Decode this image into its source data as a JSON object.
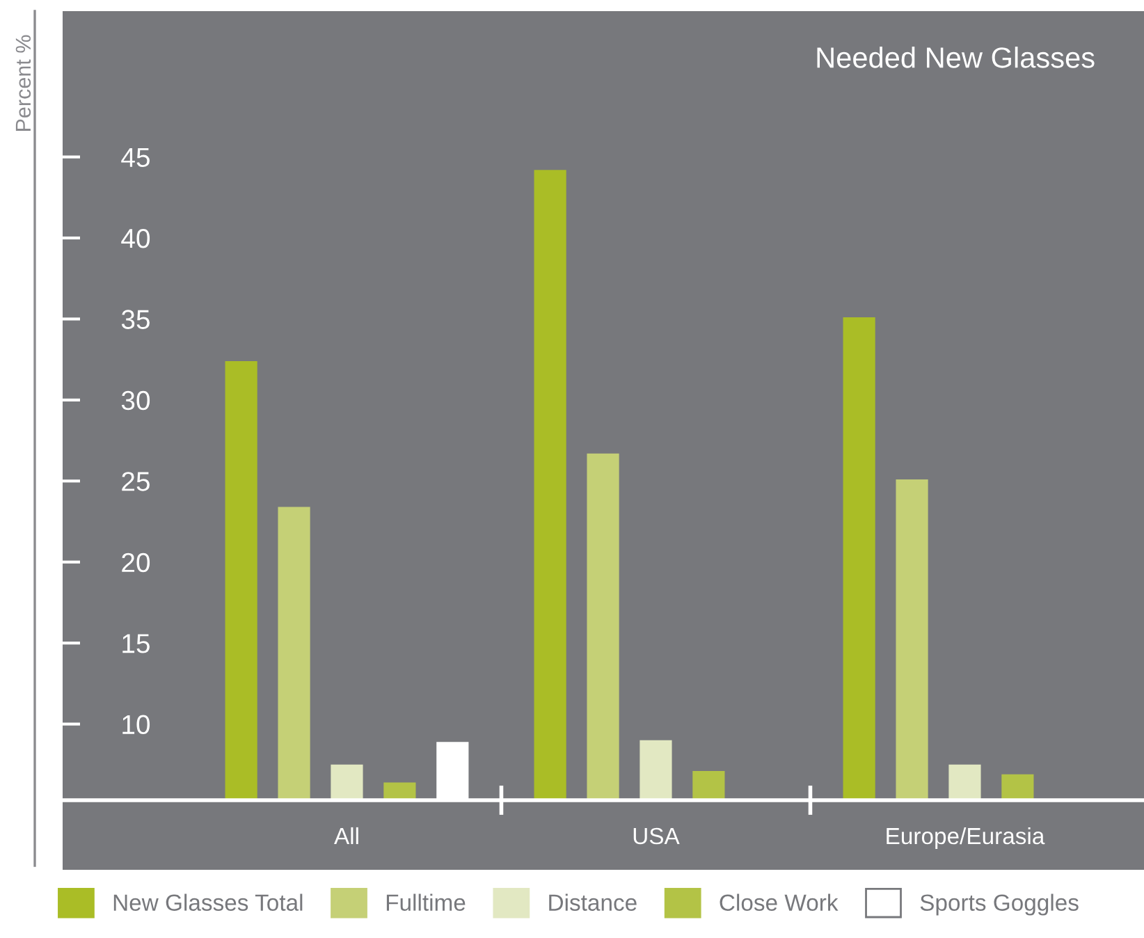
{
  "chart_data": {
    "type": "bar",
    "title": "Needed New Glasses",
    "ylabel": "Percent %",
    "categories": [
      "All",
      "USA",
      "Europe/Eurasia"
    ],
    "series": [
      {
        "name": "New Glasses Total",
        "color": "#aabd26",
        "values": [
          32.4,
          44.2,
          35.1
        ]
      },
      {
        "name": "Fulltime",
        "color": "#c5d076",
        "values": [
          23.4,
          26.7,
          25.1
        ]
      },
      {
        "name": "Distance",
        "color": "#e2e8c2",
        "values": [
          7.5,
          9.0,
          7.5
        ]
      },
      {
        "name": "Close Work",
        "color": "#b3c346",
        "values": [
          6.4,
          7.1,
          6.9
        ]
      },
      {
        "name": "Sports Goggles",
        "color": "#ffffff",
        "values": [
          8.9,
          null,
          null
        ]
      }
    ],
    "ylim": [
      5.3,
      54
    ],
    "yticks": [
      10,
      15,
      20,
      25,
      30,
      35,
      40,
      45
    ],
    "grid": false,
    "legend": "bottom"
  }
}
